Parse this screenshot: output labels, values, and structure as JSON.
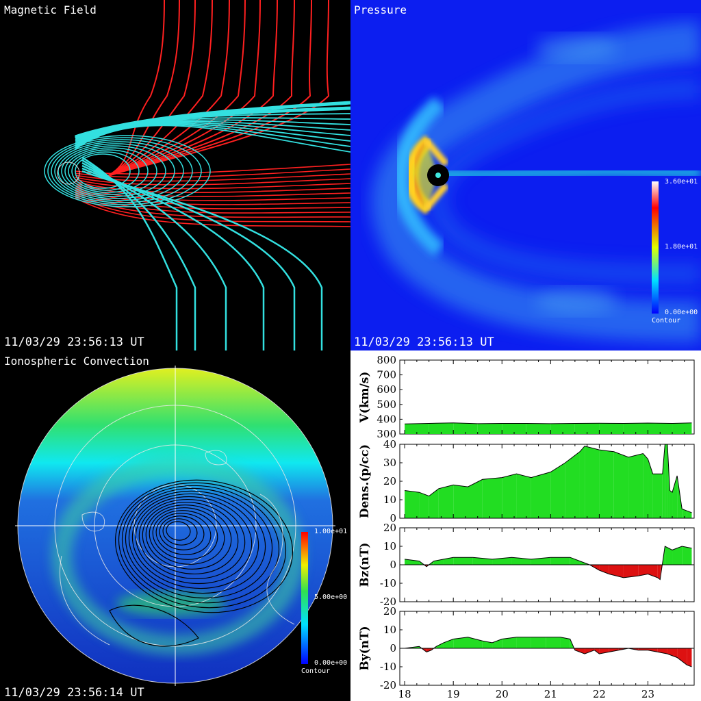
{
  "magnetic": {
    "title": "Magnetic Field",
    "timestamp": "11/03/29 23:56:13 UT"
  },
  "pressure": {
    "title": "Pressure",
    "timestamp": "11/03/29 23:56:13 UT",
    "colorbar": {
      "max": "3.60e+01",
      "mid": "1.80e+01",
      "min": "0.00e+00",
      "label": "Contour"
    }
  },
  "iono": {
    "title": "Ionospheric Convection",
    "timestamp": "11/03/29 23:56:14 UT",
    "colorbar": {
      "max": "1.00e+01",
      "mid": "5.00e+00",
      "min": "0.00e+00",
      "label": "Contour"
    }
  },
  "colors": {
    "fill_positive": "#22dd22",
    "fill_negative": "#dd1111",
    "field_open": "#ff2020",
    "field_closed": "#33e0e0"
  },
  "chart_data": [
    {
      "type": "area",
      "ylabel": "V(km/s)",
      "ylim": [
        300,
        800
      ],
      "yticks": [
        300,
        400,
        500,
        600,
        700,
        800
      ],
      "x": [
        18.0,
        18.5,
        19.0,
        19.5,
        20.0,
        20.5,
        21.0,
        21.5,
        22.0,
        22.5,
        23.0,
        23.5,
        23.9
      ],
      "values": [
        368,
        372,
        375,
        370,
        372,
        372,
        370,
        372,
        373,
        372,
        374,
        372,
        375
      ]
    },
    {
      "type": "area",
      "ylabel": "Dens.(p/cc)",
      "ylim": [
        0,
        40
      ],
      "yticks": [
        0,
        10,
        20,
        30,
        40
      ],
      "x": [
        18.0,
        18.3,
        18.5,
        18.7,
        19.0,
        19.3,
        19.6,
        20.0,
        20.3,
        20.6,
        21.0,
        21.3,
        21.6,
        21.7,
        22.0,
        22.3,
        22.6,
        22.9,
        23.0,
        23.1,
        23.3,
        23.35,
        23.4,
        23.45,
        23.5,
        23.6,
        23.7,
        23.8,
        23.9
      ],
      "values": [
        15,
        14,
        12,
        16,
        18,
        17,
        21,
        22,
        24,
        22,
        25,
        30,
        36,
        39,
        37,
        36,
        33,
        35,
        32,
        24,
        24,
        40,
        40,
        15,
        14,
        23,
        5,
        4,
        3
      ]
    },
    {
      "type": "area",
      "ylabel": "Bz(nT)",
      "ylim": [
        -20,
        20
      ],
      "yticks": [
        -20,
        -10,
        0,
        10,
        20
      ],
      "x": [
        18.0,
        18.3,
        18.45,
        18.6,
        18.8,
        19.0,
        19.4,
        19.8,
        20.2,
        20.6,
        21.0,
        21.4,
        21.6,
        21.8,
        22.0,
        22.2,
        22.5,
        22.8,
        23.0,
        23.2,
        23.25,
        23.35,
        23.5,
        23.7,
        23.9
      ],
      "values": [
        3,
        2,
        -1,
        2,
        3,
        4,
        4,
        3,
        4,
        3,
        4,
        4,
        2,
        0,
        -3,
        -5,
        -7,
        -6,
        -5,
        -7,
        -8,
        10,
        8,
        10,
        9
      ]
    },
    {
      "type": "area",
      "ylabel": "By(nT)",
      "ylim": [
        -20,
        20
      ],
      "yticks": [
        -20,
        -10,
        0,
        10,
        20
      ],
      "xticks": [
        18,
        19,
        20,
        21,
        22,
        23
      ],
      "x": [
        18.0,
        18.3,
        18.45,
        18.55,
        18.65,
        18.8,
        19.0,
        19.3,
        19.6,
        19.8,
        20.0,
        20.3,
        20.6,
        20.9,
        21.2,
        21.4,
        21.5,
        21.7,
        21.9,
        22.0,
        22.2,
        22.4,
        22.6,
        22.8,
        23.0,
        23.2,
        23.4,
        23.6,
        23.8,
        23.9
      ],
      "values": [
        0,
        1,
        -2,
        -1,
        1,
        3,
        5,
        6,
        4,
        3,
        5,
        6,
        6,
        6,
        6,
        5,
        -1,
        -3,
        -1,
        -3,
        -2,
        -1,
        0,
        -1,
        -1,
        -2,
        -3,
        -5,
        -9,
        -10
      ]
    }
  ]
}
